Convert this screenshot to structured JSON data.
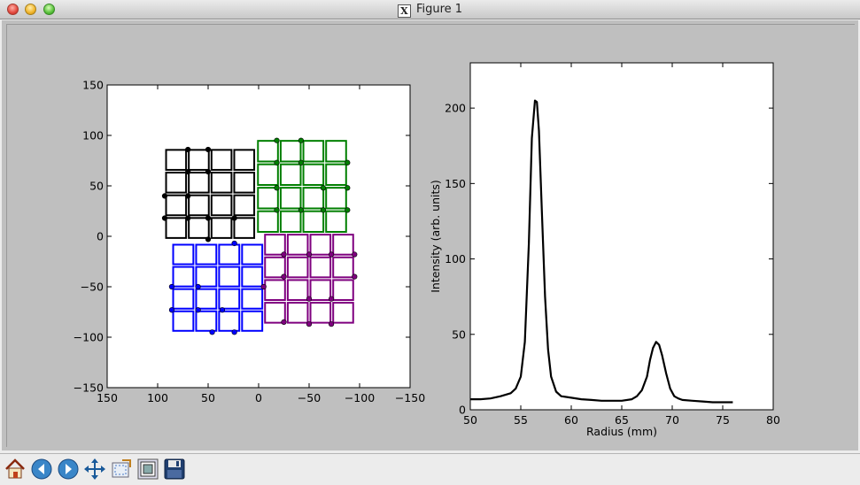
{
  "window": {
    "title": "Figure 1"
  },
  "chart_data": [
    {
      "type": "scatter",
      "title": "",
      "xlabel": "",
      "ylabel": "",
      "xlim": [
        150,
        -150
      ],
      "ylim": [
        -150,
        150
      ],
      "xticks": [
        "150",
        "100",
        "50",
        "0",
        "−50",
        "−100",
        "−150"
      ],
      "yticks": [
        "150",
        "100",
        "50",
        "0",
        "−50",
        "−100",
        "−150"
      ],
      "series": [
        {
          "color": "#000000",
          "x_range": [
            93,
            3
          ],
          "y_range": [
            -3,
            87
          ],
          "grid": [
            4,
            4
          ],
          "points": [
            [
              70,
              86
            ],
            [
              50,
              86
            ],
            [
              70,
              64
            ],
            [
              50,
              64
            ],
            [
              93,
              40
            ],
            [
              70,
              40
            ],
            [
              50,
              18
            ],
            [
              24,
              18
            ],
            [
              93,
              18
            ],
            [
              70,
              18
            ],
            [
              50,
              -3
            ]
          ]
        },
        {
          "color": "#007f00",
          "x_range": [
            2,
            -88
          ],
          "y_range": [
            3,
            96
          ],
          "grid": [
            4,
            4
          ],
          "points": [
            [
              -18,
              95
            ],
            [
              -42,
              95
            ],
            [
              -18,
              73
            ],
            [
              -42,
              73
            ],
            [
              -88,
              73
            ],
            [
              -18,
              48
            ],
            [
              -64,
              48
            ],
            [
              -88,
              48
            ],
            [
              -18,
              26
            ],
            [
              -42,
              26
            ],
            [
              -64,
              26
            ],
            [
              -88,
              26
            ]
          ]
        },
        {
          "color": "#0000ff",
          "x_range": [
            86,
            -5
          ],
          "y_range": [
            -95,
            -7
          ],
          "grid": [
            4,
            4
          ],
          "points": [
            [
              24,
              -7
            ],
            [
              86,
              -50
            ],
            [
              60,
              -50
            ],
            [
              86,
              -73
            ],
            [
              60,
              -73
            ],
            [
              36,
              -73
            ],
            [
              46,
              -95
            ],
            [
              24,
              -95
            ]
          ]
        },
        {
          "color": "#7f007f",
          "x_range": [
            -5,
            -95
          ],
          "y_range": [
            -87,
            3
          ],
          "grid": [
            4,
            4
          ],
          "points": [
            [
              -25,
              -18
            ],
            [
              -50,
              -18
            ],
            [
              -72,
              -18
            ],
            [
              -95,
              -18
            ],
            [
              -25,
              -40
            ],
            [
              -95,
              -40
            ],
            [
              -5,
              -50
            ],
            [
              -50,
              -62
            ],
            [
              -72,
              -62
            ],
            [
              -25,
              -85
            ],
            [
              -50,
              -87
            ],
            [
              -72,
              -87
            ]
          ]
        }
      ]
    },
    {
      "type": "line",
      "title": "",
      "xlabel": "Radius (mm)",
      "ylabel": "Intensity (arb. units)",
      "xlim": [
        50,
        80
      ],
      "ylim": [
        0,
        230
      ],
      "xticks": [
        "50",
        "55",
        "60",
        "65",
        "70",
        "75",
        "80"
      ],
      "yticks": [
        "0",
        "50",
        "100",
        "150",
        "200"
      ],
      "series": [
        {
          "color": "#000000",
          "x": [
            50,
            51,
            52,
            53,
            54,
            54.5,
            55,
            55.4,
            55.8,
            56.1,
            56.4,
            56.6,
            56.8,
            57.1,
            57.4,
            57.7,
            58,
            58.5,
            59,
            60,
            61,
            62,
            63,
            64,
            65,
            66,
            66.5,
            67,
            67.5,
            67.8,
            68.1,
            68.4,
            68.7,
            69,
            69.4,
            69.8,
            70.2,
            70.6,
            71,
            72,
            73,
            74,
            75,
            76
          ],
          "y": [
            7,
            7,
            7.5,
            9,
            11,
            14,
            22,
            45,
            110,
            180,
            205,
            204,
            185,
            130,
            75,
            40,
            22,
            12,
            9,
            8,
            7,
            6.5,
            6,
            6,
            6,
            7,
            9,
            13,
            22,
            33,
            41,
            45,
            43,
            36,
            24,
            14,
            9,
            7.5,
            6.5,
            6,
            5.5,
            5,
            5,
            5
          ]
        }
      ]
    }
  ],
  "toolbar": {
    "buttons": [
      {
        "name": "home-button",
        "icon": "home-icon"
      },
      {
        "name": "back-button",
        "icon": "left-arrow-icon"
      },
      {
        "name": "forward-button",
        "icon": "right-arrow-icon"
      },
      {
        "name": "pan-button",
        "icon": "move-arrows-icon"
      },
      {
        "name": "zoom-button",
        "icon": "zoom-rect-icon"
      },
      {
        "name": "subplots-button",
        "icon": "subplots-icon"
      },
      {
        "name": "save-button",
        "icon": "floppy-disk-icon"
      }
    ]
  }
}
